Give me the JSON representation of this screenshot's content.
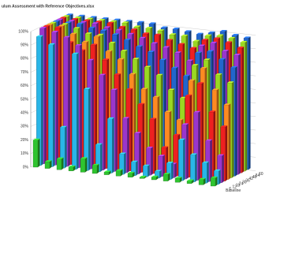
{
  "chart_data": {
    "type": "bar",
    "title": "ulum Assessment with Reference Objectives.xlsx",
    "categories": [
      null,
      null,
      null,
      null,
      null,
      null,
      null,
      null,
      null,
      null,
      null,
      null,
      null,
      null,
      null,
      null
    ],
    "series": [
      {
        "name": "Baseline",
        "color": "#2fc42f",
        "values": [
          20,
          5,
          8,
          3,
          10,
          6,
          2,
          4,
          3,
          1,
          2,
          5,
          3,
          2,
          4,
          6
        ]
      },
      {
        "name": "6",
        "color": "#29b6e8",
        "values": [
          95,
          90,
          30,
          85,
          60,
          20,
          40,
          15,
          10,
          8,
          5,
          12,
          30,
          20,
          15,
          10
        ]
      },
      {
        "name": "12",
        "color": "#9a36cc",
        "values": [
          100,
          98,
          95,
          90,
          80,
          70,
          60,
          40,
          30,
          20,
          15,
          10,
          40,
          50,
          30,
          20
        ]
      },
      {
        "name": "18",
        "color": "#ee2020",
        "values": [
          100,
          100,
          90,
          85,
          90,
          80,
          70,
          60,
          50,
          40,
          20,
          30,
          60,
          70,
          50,
          40
        ]
      },
      {
        "name": "24",
        "color": "#ff8a22",
        "values": [
          100,
          100,
          95,
          90,
          95,
          85,
          80,
          70,
          60,
          55,
          45,
          40,
          70,
          80,
          65,
          55
        ]
      },
      {
        "name": "30",
        "color": "#9ad822",
        "values": [
          100,
          100,
          98,
          95,
          95,
          90,
          85,
          80,
          75,
          70,
          60,
          55,
          80,
          85,
          75,
          70
        ]
      },
      {
        "name": "36",
        "color": "#2266cc",
        "values": [
          100,
          100,
          100,
          98,
          97,
          95,
          92,
          88,
          85,
          80,
          75,
          70,
          88,
          90,
          85,
          80
        ]
      },
      {
        "name": "42",
        "color": "#9a36cc",
        "values": [
          100,
          100,
          100,
          100,
          98,
          97,
          95,
          93,
          90,
          88,
          85,
          80,
          92,
          95,
          90,
          88
        ]
      },
      {
        "name": "48",
        "color": "#ee2020",
        "values": [
          100,
          100,
          100,
          100,
          100,
          98,
          97,
          95,
          95,
          92,
          90,
          88,
          95,
          97,
          95,
          92
        ]
      },
      {
        "name": "54",
        "color": "#9ad822",
        "values": [
          100,
          100,
          100,
          100,
          100,
          100,
          98,
          98,
          97,
          95,
          95,
          92,
          97,
          98,
          97,
          95
        ]
      },
      {
        "name": "60",
        "color": "#2266cc",
        "values": [
          100,
          100,
          100,
          100,
          100,
          100,
          100,
          100,
          98,
          98,
          97,
          96,
          98,
          100,
          98,
          97
        ]
      }
    ],
    "ylim": [
      0,
      100
    ],
    "yticks": [
      {
        "value": 0,
        "label": "0%"
      },
      {
        "value": 10,
        "label": "10%"
      },
      {
        "value": 20,
        "label": "20%"
      },
      {
        "value": 30,
        "label": "30%"
      },
      {
        "value": 40,
        "label": "40%"
      },
      {
        "value": 50,
        "label": "50%"
      },
      {
        "value": 60,
        "label": "60%"
      },
      {
        "value": 70,
        "label": "70%"
      },
      {
        "value": 80,
        "label": "80%"
      },
      {
        "value": 90,
        "label": "90%"
      },
      {
        "value": 100,
        "label": "100%"
      }
    ],
    "grid": true
  }
}
